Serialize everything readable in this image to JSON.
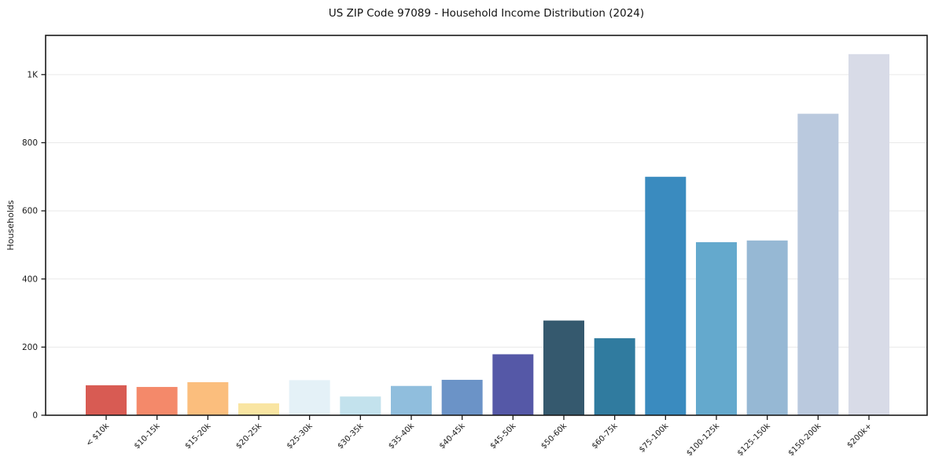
{
  "figure": {
    "background": "#ffffff"
  },
  "chart_data": {
    "type": "bar",
    "title": "US ZIP Code 97089 - Household Income Distribution (2024)",
    "xlabel": "",
    "ylabel": "Households",
    "categories": [
      "< $10k",
      "$10-15k",
      "$15-20k",
      "$20-25k",
      "$25-30k",
      "$30-35k",
      "$35-40k",
      "$40-45k",
      "$45-50k",
      "$50-60k",
      "$60-75k",
      "$75-100k",
      "$100-125k",
      "$125-150k",
      "$150-200k",
      "$200k+"
    ],
    "values": [
      88,
      83,
      97,
      35,
      103,
      55,
      86,
      104,
      179,
      278,
      226,
      700,
      508,
      513,
      885,
      1060
    ],
    "bar_colors": [
      "#d85b53",
      "#f4896a",
      "#fbbe7d",
      "#f9e5a2",
      "#e4f1f7",
      "#c3e2ed",
      "#90bedd",
      "#6b93c7",
      "#5558a7",
      "#35596e",
      "#307b9f",
      "#3a8bbf",
      "#64a9cd",
      "#96b8d4",
      "#bac9de",
      "#d8dbe7"
    ],
    "ytick_values": [
      0,
      200,
      400,
      600,
      800,
      1000
    ],
    "ytick_labels": [
      "0",
      "200",
      "400",
      "600",
      "800",
      "1K"
    ],
    "ylim": [
      0,
      1115
    ],
    "grid": "horizontal",
    "grid_color": "#e9e9e9",
    "spine_color": "#1a1a1a",
    "tick_color": "#1a1a1a",
    "text_color": "#1a1a1a",
    "legend": "none",
    "x_label_rotation_deg": 45
  }
}
